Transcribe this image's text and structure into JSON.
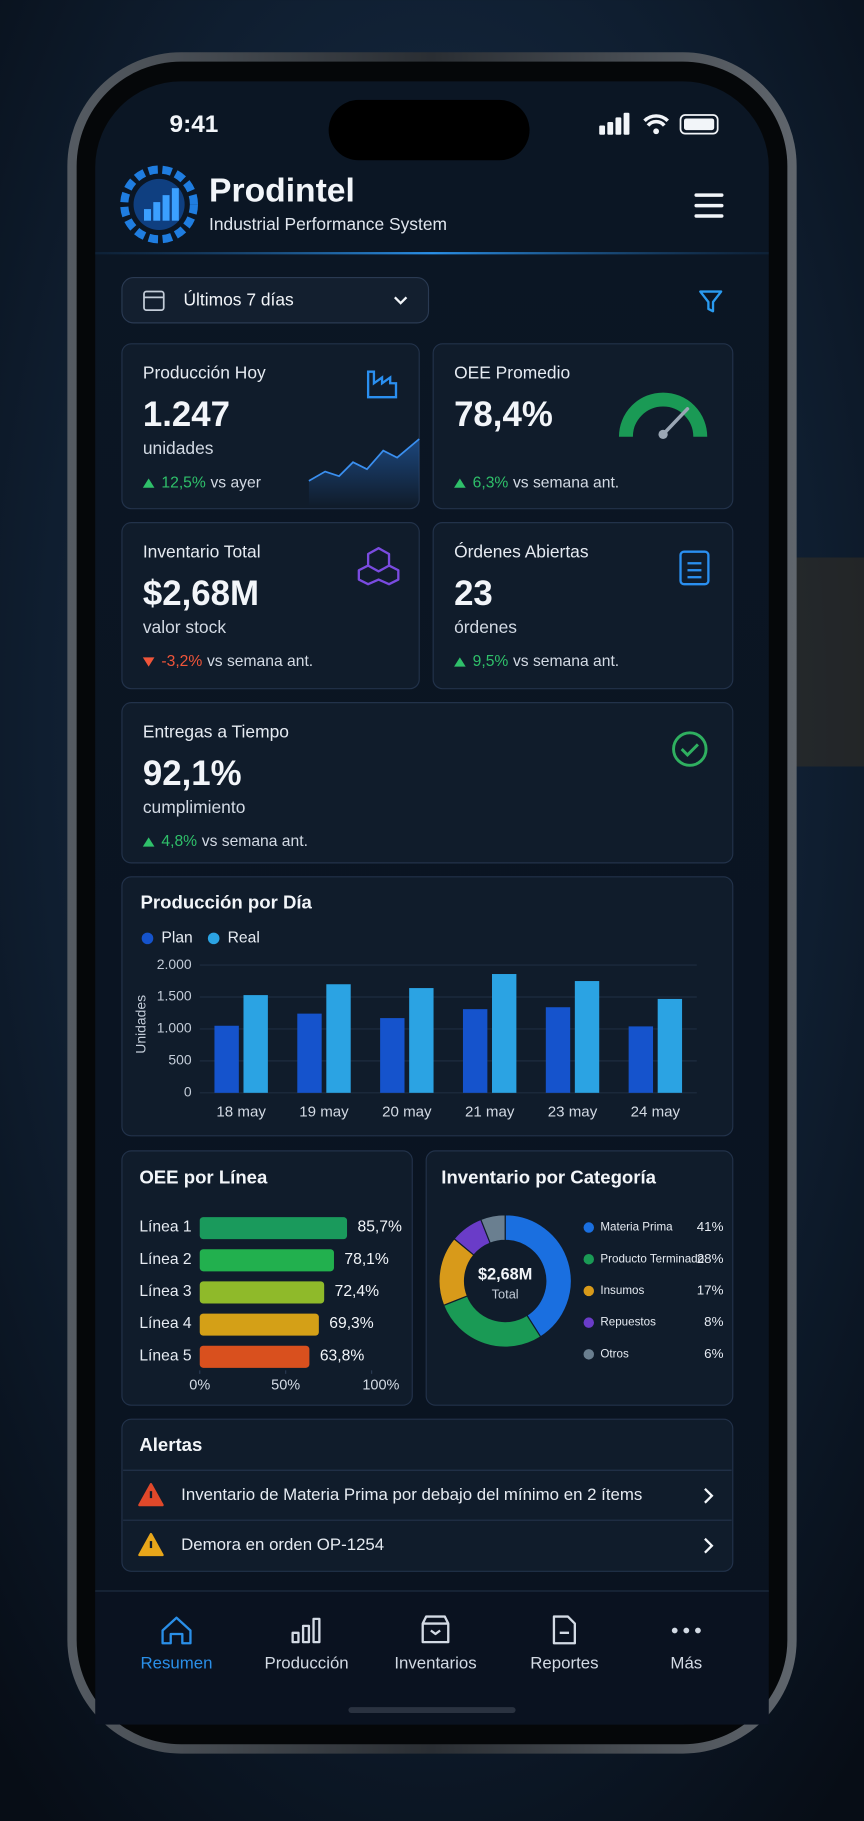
{
  "status_bar": {
    "time": "9:41"
  },
  "header": {
    "title": "Prodintel",
    "subtitle": "Industrial Performance System"
  },
  "filter": {
    "period": "Últimos 7 días"
  },
  "kpis": [
    {
      "title": "Producción Hoy",
      "value": "1.247",
      "unit": "unidades",
      "change": "12,5%",
      "change_label": "vs ayer",
      "trend": "up"
    },
    {
      "title": "OEE Promedio",
      "value": "78,4%",
      "change": "6,3%",
      "change_label": "vs semana ant.",
      "trend": "up"
    },
    {
      "title": "Inventario Total",
      "value": "$2,68M",
      "unit": "valor stock",
      "change": "-3,2%",
      "change_label": "vs semana ant.",
      "trend": "down"
    },
    {
      "title": "Órdenes Abiertas",
      "value": "23",
      "unit": "órdenes",
      "change": "9,5%",
      "change_label": "vs semana ant.",
      "trend": "up"
    },
    {
      "title": "Entregas a Tiempo",
      "value": "92,1%",
      "unit": "cumplimiento",
      "change": "4,8%",
      "change_label": "vs semana ant.",
      "trend": "up"
    }
  ],
  "production_chart": {
    "type": "bar",
    "title": "Producción por Día",
    "y_label": "Unidades",
    "categories": [
      "18 may",
      "19 may",
      "20 may",
      "21 may",
      "23 may",
      "24 may"
    ],
    "series": [
      {
        "name": "Plan",
        "color": "#1553cc",
        "values": [
          1050,
          1240,
          1170,
          1310,
          1340,
          1040
        ]
      },
      {
        "name": "Real",
        "color": "#2ba3e3",
        "values": [
          1530,
          1700,
          1640,
          1860,
          1750,
          1470
        ]
      }
    ],
    "ylim": [
      0,
      2000
    ],
    "yticks": [
      0,
      500,
      {
        "value": 1000,
        "label": "1.000"
      },
      {
        "value": 1500,
        "label": "1.500"
      },
      {
        "value": 2000,
        "label": "2.000"
      }
    ],
    "grid": true
  },
  "oee_chart": {
    "type": "bar",
    "orientation": "horizontal",
    "title": "OEE por Línea",
    "categories": [
      "Línea 1",
      "Línea 2",
      "Línea 3",
      "Línea 4",
      "Línea 5"
    ],
    "values": [
      85.7,
      78.1,
      72.4,
      69.3,
      63.8
    ],
    "value_labels": [
      "85,7%",
      "78,1%",
      "72,4%",
      "69,3%",
      "63,8%"
    ],
    "colors": [
      "#1a9a5c",
      "#22b04e",
      "#8fba2a",
      "#d4a017",
      "#d9501e"
    ],
    "xlim": [
      0,
      100
    ],
    "xticks": [
      {
        "value": 0,
        "label": "0%"
      },
      {
        "value": 50,
        "label": "50%"
      },
      {
        "value": 100,
        "label": "100%"
      }
    ]
  },
  "inventory_chart": {
    "type": "pie",
    "title": "Inventario por Categoría",
    "center_value": "$2,68M",
    "center_label": "Total",
    "categories": [
      "Materia Prima",
      "Producto Terminado",
      "Insumos",
      "Repuestos",
      "Otros"
    ],
    "values": [
      41,
      28,
      17,
      8,
      6
    ],
    "value_labels": [
      "41%",
      "28%",
      "17%",
      "8%",
      "6%"
    ],
    "colors": [
      "#1a6fe0",
      "#1a9a55",
      "#d89a1a",
      "#6a3cc8",
      "#6a7f90"
    ]
  },
  "alerts": {
    "title": "Alertas",
    "items": [
      {
        "text": "Inventario de Materia Prima por debajo del mínimo en 2 ítems",
        "level": "critical"
      },
      {
        "text": "Demora en orden OP-1254",
        "level": "warning"
      }
    ]
  },
  "nav": {
    "items": [
      "Resumen",
      "Producción",
      "Inventarios",
      "Reportes",
      "Más"
    ],
    "active": 0
  }
}
